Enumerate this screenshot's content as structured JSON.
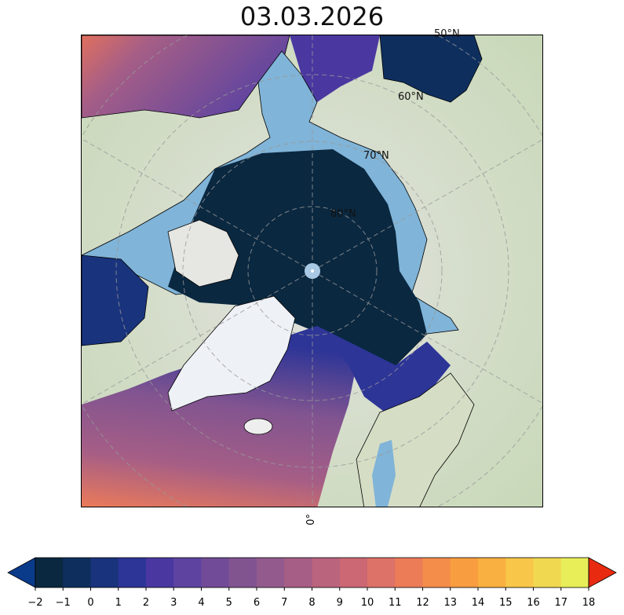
{
  "title": "03.03.2026",
  "map": {
    "lat_labels": [
      "50°N",
      "60°N",
      "70°N",
      "80°N"
    ],
    "lon_labels": [
      "0°"
    ],
    "land_color": "#d8dcca",
    "ice_color": "#80b4d8",
    "greenland_color": "#eef1f6"
  },
  "colorbar": {
    "ticks": [
      "−2",
      "−1",
      "0",
      "1",
      "2",
      "3",
      "4",
      "5",
      "6",
      "7",
      "8",
      "9",
      "10",
      "11",
      "12",
      "13",
      "14",
      "15",
      "16",
      "17",
      "18"
    ],
    "colors": [
      "#0a2840",
      "#0e2f5e",
      "#19337c",
      "#2d3597",
      "#4a38a0",
      "#5e44a0",
      "#724b98",
      "#815490",
      "#935b8d",
      "#a65e86",
      "#ba647e",
      "#cb6874",
      "#dd7268",
      "#ec7b58",
      "#f48c4a",
      "#f89e40",
      "#fab040",
      "#f8c648",
      "#f0d850",
      "#e8ee58"
    ],
    "under_color": "#0a3a8a",
    "over_color": "#e82a10"
  }
}
